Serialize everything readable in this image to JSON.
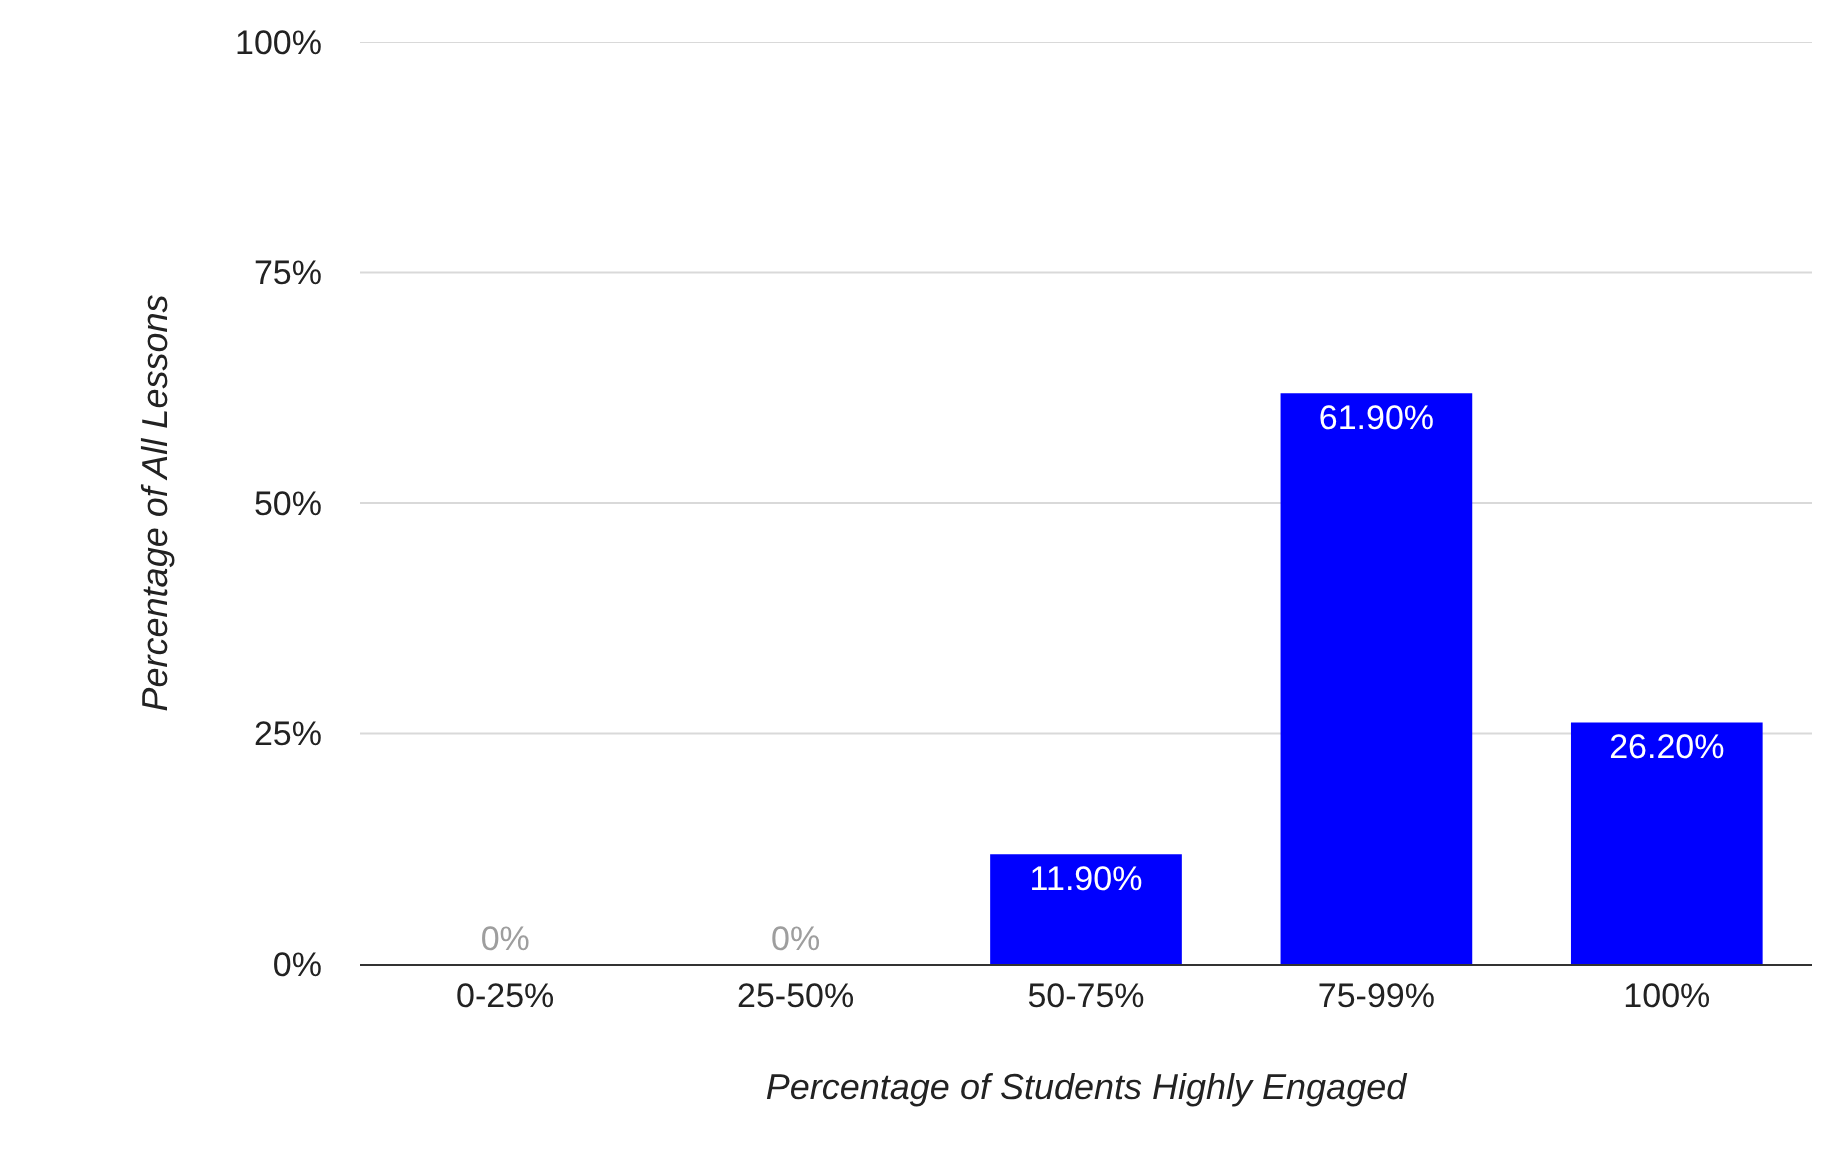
{
  "chart_data": {
    "type": "bar",
    "xlabel": "Percentage of Students Highly Engaged",
    "ylabel": "Percentage of All Lessons",
    "categories": [
      "0-25%",
      "25-50%",
      "50-75%",
      "75-99%",
      "100%"
    ],
    "values": [
      0,
      0,
      11.9,
      61.9,
      26.2
    ],
    "value_labels": [
      "0%",
      "0%",
      "11.90%",
      "61.90%",
      "26.20%"
    ],
    "color": "#0000ff",
    "ylim": [
      0,
      100
    ],
    "yticks": [
      {
        "value": 0,
        "label": "0%"
      },
      {
        "value": 25,
        "label": "25%"
      },
      {
        "value": 50,
        "label": "50%"
      },
      {
        "value": 75,
        "label": "75%"
      },
      {
        "value": 100,
        "label": "100%"
      }
    ],
    "grid": "y"
  }
}
